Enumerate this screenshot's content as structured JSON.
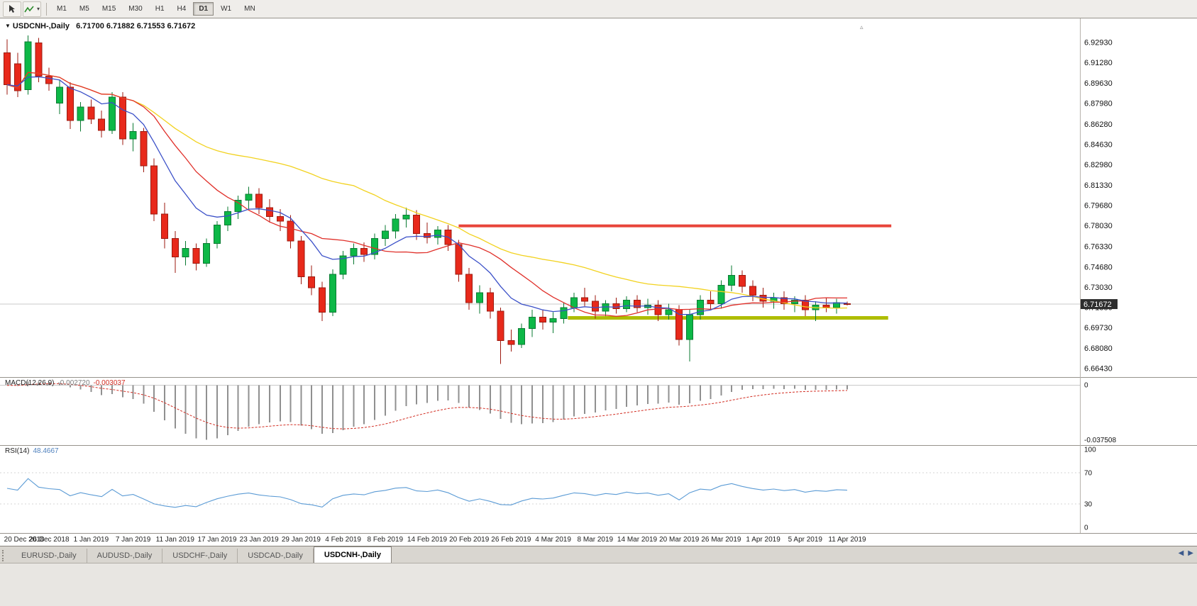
{
  "toolbar": {
    "timeframes": [
      "M1",
      "M5",
      "M15",
      "M30",
      "H1",
      "H4",
      "D1",
      "W1",
      "MN"
    ],
    "selected_timeframe": "D1",
    "tools": [
      {
        "name": "cursor-tool"
      },
      {
        "name": "drawing-tool"
      }
    ],
    "dropdown_caret": "▾"
  },
  "chart_header": {
    "dropdown_icon": "▼",
    "symbol": "USDCNH-,Daily",
    "ohlc": "6.71700 6.71882 6.71553 6.71672"
  },
  "shift_marker": "▵",
  "price_axis": [
    "6.92930",
    "6.91280",
    "6.89630",
    "6.87980",
    "6.86280",
    "6.84630",
    "6.82980",
    "6.81330",
    "6.79680",
    "6.78030",
    "6.76330",
    "6.74680",
    "6.73030",
    "6.71380",
    "6.69730",
    "6.68080",
    "6.66430"
  ],
  "current_price": "6.71672",
  "macd": {
    "name": "MACD(12,26,9)",
    "value": "-0.002720",
    "signal_value": "-0.003037",
    "scale_top": "0",
    "scale_bottom": "-0.037508"
  },
  "rsi": {
    "name": "RSI(14)",
    "value": "48.4667",
    "scale": [
      "100",
      "70",
      "30",
      "0"
    ],
    "level_lines": [
      70,
      30
    ]
  },
  "date_axis": [
    "20 Dec 2018",
    "26 Dec 2018",
    "1 Jan 2019",
    "7 Jan 2019",
    "11 Jan 2019",
    "17 Jan 2019",
    "23 Jan 2019",
    "29 Jan 2019",
    "4 Feb 2019",
    "8 Feb 2019",
    "14 Feb 2019",
    "20 Feb 2019",
    "26 Feb 2019",
    "4 Mar 2019",
    "8 Mar 2019",
    "14 Mar 2019",
    "20 Mar 2019",
    "26 Mar 2019",
    "1 Apr 2019",
    "5 Apr 2019",
    "11 Apr 2019"
  ],
  "tabs": [
    {
      "label": "EURUSD-,Daily",
      "active": false
    },
    {
      "label": "AUDUSD-,Daily",
      "active": false
    },
    {
      "label": "USDCHF-,Daily",
      "active": false
    },
    {
      "label": "USDCAD-,Daily",
      "active": false
    },
    {
      "label": "USDCNH-,Daily",
      "active": true
    }
  ],
  "tabbar_controls": {
    "left": "◀",
    "right": "▶"
  },
  "chart_data": {
    "type": "candlestick",
    "symbol": "USDCNH",
    "timeframe": "Daily",
    "title": "USDCNH-,Daily",
    "x_range_dates": [
      "20 Dec 2018",
      "11 Apr 2019"
    ],
    "tick_every_n_candles": 4,
    "price_range_view": [
      6.658,
      6.949
    ],
    "current": {
      "open": 6.717,
      "high": 6.71882,
      "low": 6.71553,
      "close": 6.71672
    },
    "candles": [
      [
        6.921,
        6.932,
        6.887,
        6.895
      ],
      [
        6.912,
        6.921,
        6.885,
        6.89
      ],
      [
        6.891,
        6.935,
        6.887,
        6.93
      ],
      [
        6.929,
        6.933,
        6.897,
        6.902
      ],
      [
        6.902,
        6.909,
        6.89,
        6.896
      ],
      [
        6.88,
        6.899,
        6.871,
        6.893
      ],
      [
        6.893,
        6.897,
        6.859,
        6.866
      ],
      [
        6.866,
        6.881,
        6.857,
        6.877
      ],
      [
        6.877,
        6.883,
        6.863,
        6.867
      ],
      [
        6.867,
        6.874,
        6.852,
        6.858
      ],
      [
        6.858,
        6.889,
        6.855,
        6.885
      ],
      [
        6.885,
        6.889,
        6.846,
        6.851
      ],
      [
        6.851,
        6.864,
        6.841,
        6.857
      ],
      [
        6.857,
        6.86,
        6.824,
        6.829
      ],
      [
        6.829,
        6.835,
        6.784,
        6.79
      ],
      [
        6.79,
        6.799,
        6.762,
        6.77
      ],
      [
        6.77,
        6.776,
        6.742,
        6.755
      ],
      [
        6.755,
        6.768,
        6.748,
        6.762
      ],
      [
        6.762,
        6.766,
        6.744,
        6.75
      ],
      [
        6.75,
        6.77,
        6.747,
        6.766
      ],
      [
        6.766,
        6.784,
        6.762,
        6.781
      ],
      [
        6.781,
        6.796,
        6.776,
        6.792
      ],
      [
        6.792,
        6.805,
        6.786,
        6.801
      ],
      [
        6.801,
        6.812,
        6.794,
        6.806
      ],
      [
        6.806,
        6.811,
        6.79,
        6.795
      ],
      [
        6.795,
        6.802,
        6.783,
        6.788
      ],
      [
        6.788,
        6.794,
        6.776,
        6.784
      ],
      [
        6.784,
        6.789,
        6.762,
        6.768
      ],
      [
        6.768,
        6.772,
        6.733,
        6.739
      ],
      [
        6.739,
        6.748,
        6.724,
        6.73
      ],
      [
        6.73,
        6.735,
        6.703,
        6.71
      ],
      [
        6.71,
        6.745,
        6.707,
        6.741
      ],
      [
        6.741,
        6.76,
        6.737,
        6.756
      ],
      [
        6.756,
        6.766,
        6.749,
        6.762
      ],
      [
        6.762,
        6.767,
        6.751,
        6.757
      ],
      [
        6.757,
        6.774,
        6.753,
        6.77
      ],
      [
        6.77,
        6.781,
        6.764,
        6.776
      ],
      [
        6.776,
        6.79,
        6.77,
        6.786
      ],
      [
        6.786,
        6.795,
        6.779,
        6.789
      ],
      [
        6.789,
        6.793,
        6.769,
        6.774
      ],
      [
        6.774,
        6.783,
        6.766,
        6.771
      ],
      [
        6.771,
        6.78,
        6.765,
        6.777
      ],
      [
        6.777,
        6.781,
        6.76,
        6.765
      ],
      [
        6.765,
        6.769,
        6.735,
        6.741
      ],
      [
        6.741,
        6.746,
        6.712,
        6.718
      ],
      [
        6.718,
        6.732,
        6.709,
        6.726
      ],
      [
        6.726,
        6.73,
        6.705,
        6.711
      ],
      [
        6.711,
        6.714,
        6.668,
        6.687
      ],
      [
        6.687,
        6.696,
        6.678,
        6.684
      ],
      [
        6.684,
        6.701,
        6.681,
        6.697
      ],
      [
        6.697,
        6.712,
        6.69,
        6.706
      ],
      [
        6.706,
        6.712,
        6.696,
        6.702
      ],
      [
        6.702,
        6.71,
        6.693,
        6.705
      ],
      [
        6.705,
        6.718,
        6.701,
        6.714
      ],
      [
        6.714,
        6.726,
        6.71,
        6.722
      ],
      [
        6.722,
        6.73,
        6.715,
        6.719
      ],
      [
        6.719,
        6.724,
        6.705,
        6.711
      ],
      [
        6.711,
        6.72,
        6.707,
        6.717
      ],
      [
        6.717,
        6.722,
        6.709,
        6.713
      ],
      [
        6.713,
        6.723,
        6.71,
        6.72
      ],
      [
        6.72,
        6.724,
        6.71,
        6.714
      ],
      [
        6.714,
        6.721,
        6.708,
        6.716
      ],
      [
        6.716,
        6.72,
        6.703,
        6.708
      ],
      [
        6.708,
        6.717,
        6.704,
        6.712
      ],
      [
        6.712,
        6.716,
        6.683,
        6.688
      ],
      [
        6.688,
        6.712,
        6.67,
        6.708
      ],
      [
        6.708,
        6.724,
        6.704,
        6.72
      ],
      [
        6.72,
        6.727,
        6.712,
        6.717
      ],
      [
        6.717,
        6.736,
        6.713,
        6.732
      ],
      [
        6.732,
        6.748,
        6.727,
        6.74
      ],
      [
        6.74,
        6.744,
        6.726,
        6.731
      ],
      [
        6.731,
        6.736,
        6.719,
        6.724
      ],
      [
        6.724,
        6.73,
        6.714,
        6.719
      ],
      [
        6.719,
        6.726,
        6.713,
        6.722
      ],
      [
        6.722,
        6.727,
        6.712,
        6.717
      ],
      [
        6.717,
        6.723,
        6.71,
        6.72
      ],
      [
        6.72,
        6.724,
        6.707,
        6.712
      ],
      [
        6.712,
        6.719,
        6.703,
        6.716
      ],
      [
        6.716,
        6.722,
        6.71,
        6.714
      ],
      [
        6.714,
        6.721,
        6.709,
        6.718
      ],
      [
        6.717,
        6.71882,
        6.71553,
        6.71672
      ]
    ],
    "overlays": {
      "moving_averages": [
        {
          "name": "ma-slow",
          "type": "sma",
          "period": 34,
          "color": "#f2d21f"
        },
        {
          "name": "ma-medium",
          "type": "sma",
          "period": 13,
          "color": "#e0302a"
        },
        {
          "name": "ma-fast",
          "type": "ema",
          "period": 9,
          "color": "#3b50c8"
        }
      ],
      "hlines": [
        {
          "name": "resistance-line",
          "price": 6.7803,
          "color": "#e8453a",
          "thickness": 4,
          "from_index": 43,
          "to_index": 84.2
        },
        {
          "name": "support-line",
          "price": 6.7055,
          "color": "#aebd00",
          "thickness": 5,
          "from_index": 53.4,
          "to_index": 83.9
        }
      ]
    },
    "indicators": [
      {
        "name": "MACD",
        "params": [
          12,
          26,
          9
        ],
        "current": [
          -0.00272,
          -0.003037
        ]
      },
      {
        "name": "RSI",
        "params": [
          14
        ],
        "current": 48.4667
      }
    ],
    "colors": {
      "up": "#0db847",
      "up_dark": "#0a7a32",
      "down": "#e8291b",
      "down_dark": "#9c1a0f",
      "macd_histogram": "#909090",
      "macd_signal": "#d22d22",
      "rsi_line": "#5b9bd5",
      "grid": "#c9c9c9",
      "axis_sep": "#b6b2ac",
      "badge_bg": "#2e2e2e",
      "badge_text": "#ffffff"
    }
  }
}
